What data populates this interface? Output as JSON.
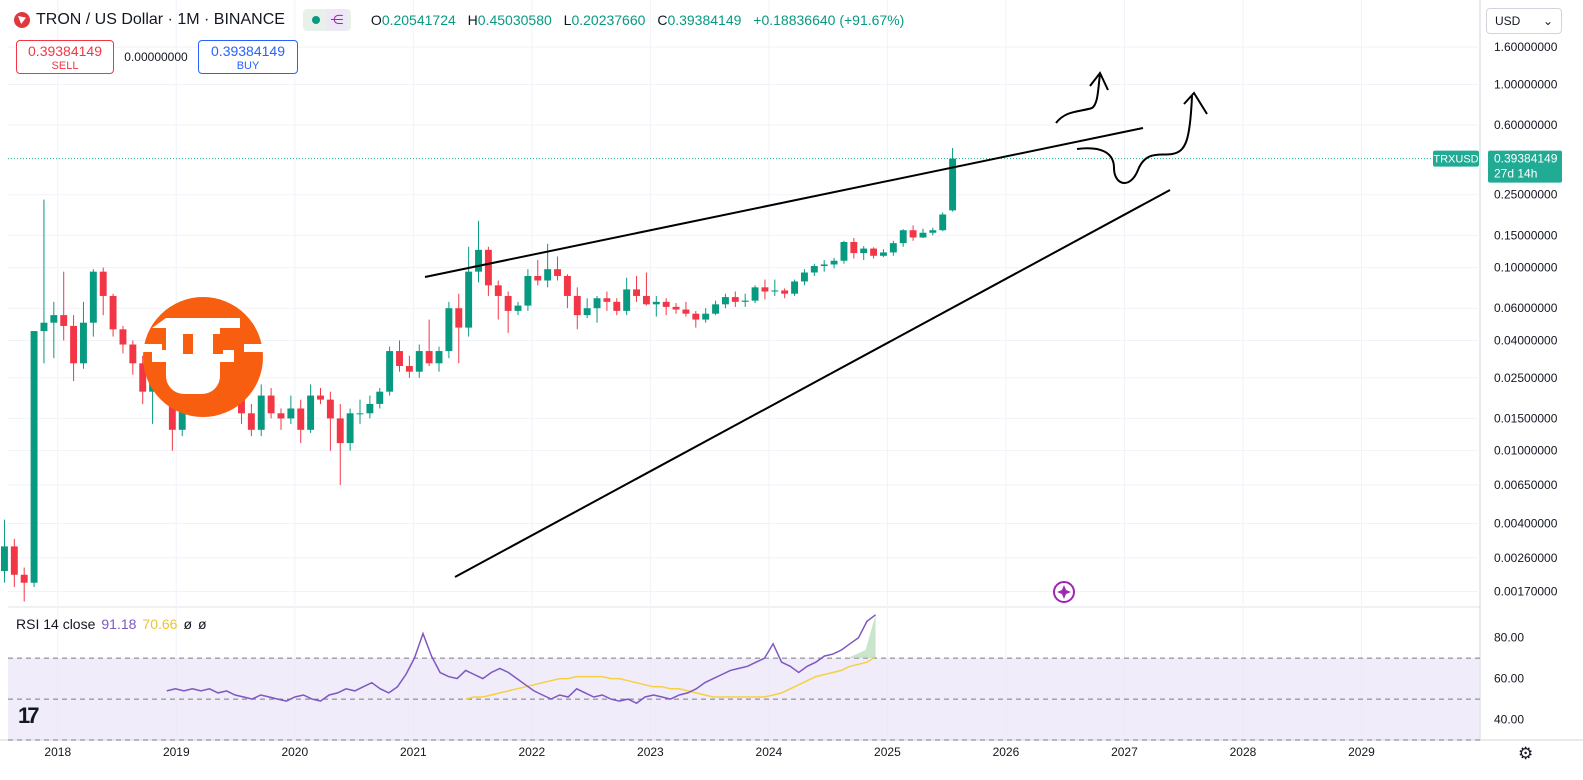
{
  "header": {
    "symbol": "TRON / US Dollar · 1M · BINANCE",
    "ohlc": {
      "o_label": "O",
      "o": "0.20541724",
      "h_label": "H",
      "h": "0.45030580",
      "l_label": "L",
      "l": "0.20237660",
      "c_label": "C",
      "c": "0.39384149",
      "change": "+0.18836640 (+91.67%)"
    },
    "share_icon": "share-nodes-icon"
  },
  "trade": {
    "sell_price": "0.39384149",
    "sell_label": "SELL",
    "spread": "0.00000000",
    "buy_price": "0.39384149",
    "buy_label": "BUY"
  },
  "currency_select": {
    "value": "USD"
  },
  "price_tag": {
    "ticker": "TRXUSD",
    "price": "0.39384149",
    "countdown": "27d 14h"
  },
  "rsi": {
    "label": "RSI 14 close",
    "rsi_value": "91.18",
    "ma_value": "70.66",
    "extra1": "ø",
    "extra2": "ø"
  },
  "colors": {
    "up": "#089981",
    "down": "#f23645",
    "rsi": "#7e57c2",
    "rsi_ma": "#f5d142",
    "band": "#e9e4f7",
    "logo": "#f85e0f",
    "accent_price": "#22ab94"
  },
  "chart_data": [
    {
      "type": "candlestick",
      "title": "TRON / US Dollar · 1M · BINANCE",
      "y_scale": "log",
      "ylim": [
        0.0014,
        1.75
      ],
      "y_ticks": [
        "1.60000000",
        "1.00000000",
        "0.60000000",
        "0.39384149",
        "0.25000000",
        "0.15000000",
        "0.10000000",
        "0.06000000",
        "0.04000000",
        "0.02500000",
        "0.01500000",
        "0.01000000",
        "0.00650000",
        "0.00400000",
        "0.00260000",
        "0.00170000"
      ],
      "y_tick_values": [
        1.6,
        1.0,
        0.6,
        0.39384149,
        0.25,
        0.15,
        0.1,
        0.06,
        0.04,
        0.025,
        0.015,
        0.01,
        0.0065,
        0.004,
        0.0026,
        0.0017
      ],
      "x_ticks": [
        "2018",
        "2019",
        "2020",
        "2021",
        "2022",
        "2023",
        "2024",
        "2025",
        "2026",
        "2027",
        "2028",
        "2029"
      ],
      "x_range": [
        2017.58,
        2030.0
      ],
      "last_price": 0.39384149,
      "candles": [
        [
          0.0022,
          0.0042,
          0.0019,
          0.003
        ],
        [
          0.003,
          0.0033,
          0.0018,
          0.0021
        ],
        [
          0.0021,
          0.0023,
          0.0015,
          0.0019
        ],
        [
          0.0019,
          0.045,
          0.0018,
          0.045
        ],
        [
          0.045,
          0.235,
          0.03,
          0.05
        ],
        [
          0.05,
          0.065,
          0.032,
          0.055
        ],
        [
          0.055,
          0.095,
          0.04,
          0.048
        ],
        [
          0.048,
          0.055,
          0.024,
          0.03
        ],
        [
          0.03,
          0.065,
          0.028,
          0.05
        ],
        [
          0.05,
          0.098,
          0.042,
          0.095
        ],
        [
          0.095,
          0.1,
          0.055,
          0.07
        ],
        [
          0.07,
          0.072,
          0.042,
          0.046
        ],
        [
          0.046,
          0.048,
          0.034,
          0.038
        ],
        [
          0.038,
          0.04,
          0.026,
          0.03
        ],
        [
          0.03,
          0.033,
          0.018,
          0.021
        ],
        [
          0.021,
          0.025,
          0.014,
          0.024
        ],
        [
          0.024,
          0.028,
          0.019,
          0.022
        ],
        [
          0.022,
          0.023,
          0.01,
          0.013
        ],
        [
          0.013,
          0.026,
          0.012,
          0.025
        ],
        [
          0.025,
          0.028,
          0.019,
          0.02
        ],
        [
          0.02,
          0.022,
          0.017,
          0.02
        ],
        [
          0.02,
          0.038,
          0.019,
          0.034
        ],
        [
          0.034,
          0.037,
          0.02,
          0.03
        ],
        [
          0.03,
          0.044,
          0.02,
          0.022
        ],
        [
          0.022,
          0.023,
          0.014,
          0.016
        ],
        [
          0.016,
          0.018,
          0.012,
          0.013
        ],
        [
          0.013,
          0.023,
          0.012,
          0.02
        ],
        [
          0.02,
          0.022,
          0.015,
          0.016
        ],
        [
          0.016,
          0.017,
          0.013,
          0.015
        ],
        [
          0.015,
          0.02,
          0.014,
          0.017
        ],
        [
          0.017,
          0.019,
          0.011,
          0.013
        ],
        [
          0.013,
          0.023,
          0.0125,
          0.02
        ],
        [
          0.02,
          0.022,
          0.018,
          0.019
        ],
        [
          0.019,
          0.021,
          0.01,
          0.015
        ],
        [
          0.015,
          0.018,
          0.0065,
          0.011
        ],
        [
          0.011,
          0.017,
          0.01,
          0.016
        ],
        [
          0.016,
          0.019,
          0.014,
          0.016
        ],
        [
          0.016,
          0.02,
          0.015,
          0.018
        ],
        [
          0.018,
          0.022,
          0.017,
          0.021
        ],
        [
          0.021,
          0.037,
          0.02,
          0.035
        ],
        [
          0.035,
          0.04,
          0.027,
          0.029
        ],
        [
          0.029,
          0.033,
          0.025,
          0.027
        ],
        [
          0.027,
          0.038,
          0.025,
          0.035
        ],
        [
          0.035,
          0.052,
          0.029,
          0.03
        ],
        [
          0.03,
          0.037,
          0.027,
          0.035
        ],
        [
          0.035,
          0.065,
          0.032,
          0.06
        ],
        [
          0.06,
          0.072,
          0.03,
          0.047
        ],
        [
          0.047,
          0.13,
          0.042,
          0.095
        ],
        [
          0.095,
          0.18,
          0.083,
          0.125
        ],
        [
          0.125,
          0.13,
          0.07,
          0.08
        ],
        [
          0.08,
          0.085,
          0.052,
          0.07
        ],
        [
          0.07,
          0.074,
          0.044,
          0.058
        ],
        [
          0.058,
          0.065,
          0.055,
          0.062
        ],
        [
          0.062,
          0.098,
          0.058,
          0.09
        ],
        [
          0.09,
          0.11,
          0.08,
          0.085
        ],
        [
          0.085,
          0.135,
          0.078,
          0.098
        ],
        [
          0.098,
          0.115,
          0.085,
          0.09
        ],
        [
          0.09,
          0.092,
          0.06,
          0.07
        ],
        [
          0.07,
          0.078,
          0.046,
          0.055
        ],
        [
          0.055,
          0.068,
          0.053,
          0.06
        ],
        [
          0.06,
          0.07,
          0.05,
          0.068
        ],
        [
          0.068,
          0.074,
          0.058,
          0.065
        ],
        [
          0.065,
          0.068,
          0.055,
          0.058
        ],
        [
          0.058,
          0.088,
          0.055,
          0.076
        ],
        [
          0.076,
          0.09,
          0.065,
          0.07
        ],
        [
          0.07,
          0.094,
          0.062,
          0.063
        ],
        [
          0.063,
          0.07,
          0.054,
          0.065
        ],
        [
          0.065,
          0.068,
          0.055,
          0.061
        ],
        [
          0.061,
          0.064,
          0.056,
          0.059
        ],
        [
          0.059,
          0.065,
          0.054,
          0.056
        ],
        [
          0.056,
          0.058,
          0.047,
          0.052
        ],
        [
          0.052,
          0.06,
          0.05,
          0.056
        ],
        [
          0.056,
          0.066,
          0.055,
          0.063
        ],
        [
          0.063,
          0.072,
          0.06,
          0.069
        ],
        [
          0.069,
          0.074,
          0.061,
          0.065
        ],
        [
          0.065,
          0.072,
          0.061,
          0.066
        ],
        [
          0.066,
          0.08,
          0.064,
          0.078
        ],
        [
          0.078,
          0.086,
          0.067,
          0.074
        ],
        [
          0.074,
          0.086,
          0.07,
          0.075
        ],
        [
          0.075,
          0.077,
          0.068,
          0.072
        ],
        [
          0.072,
          0.086,
          0.07,
          0.084
        ],
        [
          0.084,
          0.098,
          0.08,
          0.094
        ],
        [
          0.094,
          0.105,
          0.09,
          0.102
        ],
        [
          0.102,
          0.11,
          0.095,
          0.104
        ],
        [
          0.104,
          0.113,
          0.099,
          0.109
        ],
        [
          0.109,
          0.14,
          0.105,
          0.138
        ],
        [
          0.138,
          0.145,
          0.112,
          0.12
        ],
        [
          0.12,
          0.131,
          0.11,
          0.127
        ],
        [
          0.127,
          0.129,
          0.112,
          0.116
        ],
        [
          0.116,
          0.126,
          0.114,
          0.121
        ],
        [
          0.121,
          0.14,
          0.116,
          0.136
        ],
        [
          0.136,
          0.162,
          0.13,
          0.16
        ],
        [
          0.16,
          0.17,
          0.14,
          0.146
        ],
        [
          0.146,
          0.163,
          0.145,
          0.155
        ],
        [
          0.155,
          0.165,
          0.15,
          0.16
        ],
        [
          0.16,
          0.2,
          0.158,
          0.195
        ],
        [
          0.2054,
          0.4503,
          0.2024,
          0.3938
        ]
      ]
    },
    {
      "type": "line",
      "title": "RSI 14 close",
      "ylim": [
        30,
        95
      ],
      "y_ticks": [
        "80.00",
        "60.00",
        "40.00"
      ],
      "y_tick_values": [
        80,
        60,
        40
      ],
      "bands": [
        70,
        50,
        30
      ],
      "series": [
        {
          "values": [
            54,
            55,
            54,
            55,
            54,
            55,
            53,
            54,
            52,
            51,
            50,
            52,
            51,
            50,
            49,
            51,
            52,
            50,
            49,
            52,
            53,
            55,
            54,
            56,
            58,
            55,
            53,
            56,
            62,
            70,
            82,
            71,
            63,
            61,
            60,
            64,
            62,
            60,
            63,
            65,
            63,
            60,
            57,
            54,
            52,
            50,
            52,
            51,
            55,
            53,
            51,
            52,
            50,
            49,
            50,
            48,
            51,
            52,
            51,
            50,
            52,
            53,
            55,
            58,
            60,
            62,
            64,
            65,
            66,
            68,
            70,
            77,
            68,
            66,
            63,
            66,
            68,
            71,
            72,
            74,
            77,
            80,
            88,
            91.18
          ]
        },
        {
          "values": [
            50,
            51,
            51,
            52,
            53,
            54,
            55,
            56,
            57,
            58,
            59,
            60,
            60,
            61,
            61,
            61,
            61,
            60,
            60,
            59,
            58,
            57,
            56,
            56,
            55,
            55,
            54,
            53,
            52,
            51,
            51,
            51,
            51,
            51,
            51,
            51,
            52,
            53,
            55,
            57,
            59,
            61,
            62,
            63,
            64,
            66,
            67,
            68,
            70.66
          ]
        }
      ]
    }
  ]
}
